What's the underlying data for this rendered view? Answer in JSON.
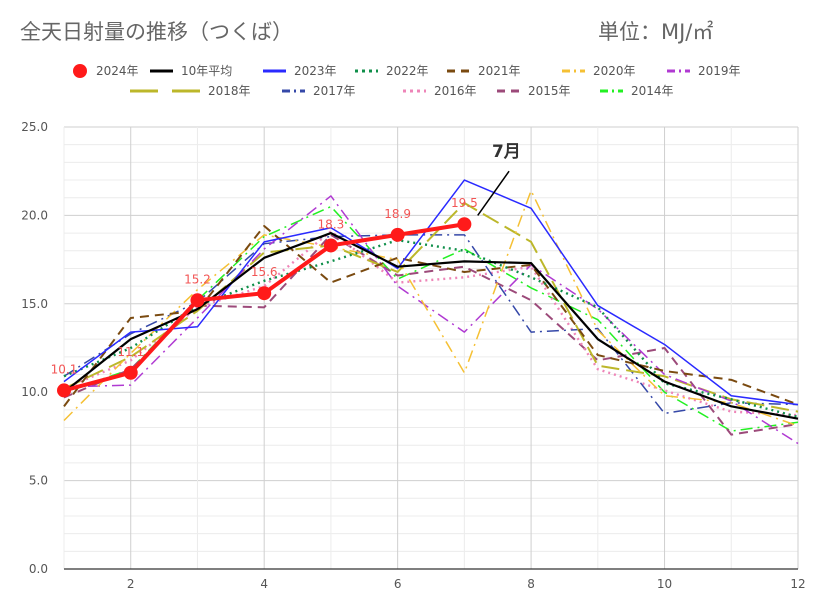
{
  "title": "全天日射量の推移（つくば）",
  "unit": "単位：MJ/㎡",
  "chart_data": {
    "type": "line",
    "title": "全天日射量の推移（つくば）",
    "unit": "単位：MJ/㎡",
    "xlim": [
      1,
      12
    ],
    "ylim": [
      0,
      25
    ],
    "x_ticks": [
      2,
      4,
      6,
      8,
      10,
      12
    ],
    "y_ticks": [
      "0.0",
      "5.0",
      "10.0",
      "15.0",
      "20.0",
      "25.0"
    ],
    "grid": true,
    "legend_position": "top",
    "annotation": "7月",
    "series": [
      {
        "name": "2024年",
        "color": "#ff1a1a",
        "style": "marker",
        "x": [
          1,
          2,
          3,
          4,
          5,
          6,
          7
        ],
        "values": [
          10.1,
          11.1,
          15.2,
          15.6,
          18.3,
          18.9,
          19.5
        ],
        "labels": [
          "10.1",
          "11.1",
          "15.2",
          "15.6",
          "18.3",
          "18.9",
          "19.5"
        ]
      },
      {
        "name": "10年平均",
        "color": "#000000",
        "style": "solid",
        "x": [
          1,
          2,
          3,
          4,
          5,
          6,
          7,
          8,
          9,
          10,
          11,
          12
        ],
        "values": [
          10.0,
          13.0,
          14.7,
          17.6,
          19.0,
          17.1,
          17.4,
          17.3,
          13.0,
          10.6,
          9.2,
          8.5
        ]
      },
      {
        "name": "2023年",
        "color": "#2a2aff",
        "style": "solid",
        "x": [
          1,
          2,
          3,
          4,
          5,
          6,
          7,
          8,
          9,
          10,
          11,
          12
        ],
        "values": [
          10.6,
          13.4,
          13.7,
          18.5,
          19.3,
          17.0,
          22.0,
          20.4,
          14.9,
          12.7,
          9.8,
          9.3
        ]
      },
      {
        "name": "2022年",
        "color": "#0f8f4a",
        "style": "dotted",
        "x": [
          1,
          2,
          3,
          4,
          5,
          6,
          7,
          8,
          9,
          10,
          11,
          12
        ],
        "values": [
          10.9,
          12.5,
          14.9,
          16.3,
          17.4,
          18.6,
          18.0,
          16.5,
          14.8,
          10.5,
          9.6,
          8.6
        ]
      },
      {
        "name": "2021年",
        "color": "#7a4a10",
        "style": "dashed",
        "x": [
          1,
          2,
          3,
          4,
          5,
          6,
          7,
          8,
          9,
          10,
          11,
          12
        ],
        "values": [
          9.2,
          14.2,
          14.6,
          19.4,
          16.2,
          17.6,
          16.8,
          17.2,
          12.1,
          11.2,
          10.7,
          9.3
        ]
      },
      {
        "name": "2020年",
        "color": "#f5c034",
        "style": "dashdot",
        "x": [
          1,
          2,
          3,
          4,
          5,
          6,
          7,
          8,
          9,
          10,
          11,
          12
        ],
        "values": [
          8.4,
          12.2,
          15.8,
          18.9,
          18.2,
          17.5,
          11.1,
          21.4,
          13.5,
          9.8,
          9.4,
          8.1
        ]
      },
      {
        "name": "2019年",
        "color": "#b03ad2",
        "style": "dashdot",
        "x": [
          1,
          2,
          3,
          4,
          5,
          6,
          7,
          8,
          9,
          10,
          11,
          12
        ],
        "values": [
          10.3,
          10.4,
          14.2,
          18.1,
          21.1,
          16.0,
          13.4,
          17.2,
          14.7,
          11.0,
          9.5,
          7.1
        ]
      },
      {
        "name": "2018年",
        "color": "#bcb72a",
        "style": "longdash",
        "x": [
          1,
          2,
          3,
          4,
          5,
          6,
          7,
          8,
          9,
          10,
          11,
          12
        ],
        "values": [
          10.2,
          12.0,
          14.6,
          17.9,
          18.3,
          16.8,
          20.7,
          18.5,
          11.5,
          10.9,
          9.6,
          8.9
        ]
      },
      {
        "name": "2017年",
        "color": "#3548a8",
        "style": "dashdot",
        "x": [
          1,
          2,
          3,
          4,
          5,
          6,
          7,
          8,
          9,
          10,
          11,
          12
        ],
        "values": [
          10.9,
          13.3,
          15.1,
          18.4,
          18.8,
          18.9,
          18.9,
          13.4,
          13.6,
          8.8,
          9.4,
          9.3
        ]
      },
      {
        "name": "2016年",
        "color": "#ee85b8",
        "style": "dotted",
        "x": [
          1,
          2,
          3,
          4,
          5,
          6,
          7,
          8,
          9,
          10,
          11,
          12
        ],
        "values": [
          10.2,
          11.8,
          14.8,
          16.0,
          19.1,
          16.2,
          16.5,
          17.1,
          11.3,
          10.1,
          8.9,
          8.7
        ]
      },
      {
        "name": "2015年",
        "color": "#9c4a7a",
        "style": "dashed",
        "x": [
          1,
          2,
          3,
          4,
          5,
          6,
          7,
          8,
          9,
          10,
          11,
          12
        ],
        "values": [
          9.7,
          11.3,
          14.9,
          14.8,
          18.9,
          16.6,
          17.1,
          15.2,
          11.8,
          12.5,
          7.6,
          8.2
        ]
      },
      {
        "name": "2014年",
        "color": "#22f022",
        "style": "dashdot",
        "x": [
          1,
          2,
          3,
          4,
          5,
          6,
          7,
          8,
          9,
          10,
          11,
          12
        ],
        "values": [
          10.0,
          11.3,
          15.2,
          18.8,
          20.5,
          16.4,
          18.1,
          15.9,
          14.1,
          10.0,
          7.8,
          8.3
        ]
      }
    ]
  }
}
